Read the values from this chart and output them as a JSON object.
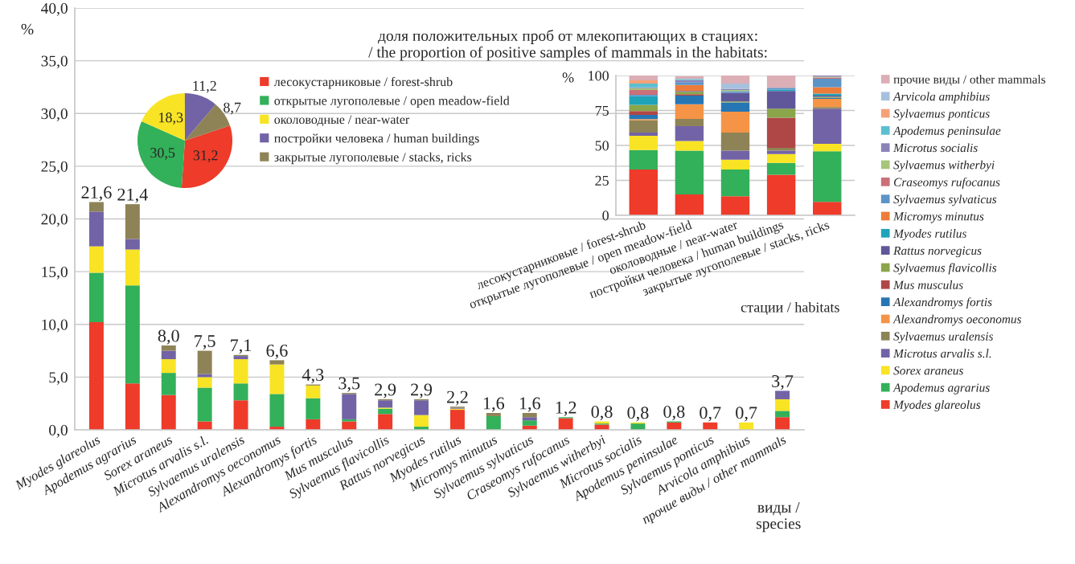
{
  "chart_data": [
    {
      "type": "bar",
      "stacked": true,
      "xlabel": "виды /\nspecies",
      "ylabel": "%",
      "grid": "y",
      "categories": [
        "Myodes glareolus",
        "Apodemus agrarius",
        "Sorex araneus",
        "Microtus arvalis s.l.",
        "Sylvaemus uralensis",
        "Alexandromys oeconomus",
        "Alexandromys fortis",
        "Mus musculus",
        "Sylvaemus flavicollis",
        "Rattus norvegicus",
        "Myodes rutilus",
        "Micromys minutus",
        "Sylvaemus sylvaticus",
        "Craseomys rufocanus",
        "Sylvaemus witherbyi",
        "Microtus socialis",
        "Apodemus peninsulae",
        "Sylvaemus ponticus",
        "Arvicola amphibius",
        "прочие виды / other mammals"
      ],
      "series": [
        {
          "color": "#ee3b2a",
          "values": [
            10.2,
            4.4,
            3.3,
            0.8,
            2.8,
            0.3,
            1.0,
            0.8,
            1.5,
            0,
            1.9,
            0,
            0.4,
            1.1,
            0.5,
            null,
            0.7,
            0.7,
            0,
            1.2
          ]
        },
        {
          "color": "#33b05a",
          "values": [
            4.7,
            9.3,
            2.1,
            3.2,
            1.6,
            3.1,
            2.0,
            0.2,
            0.5,
            0.3,
            0,
            1.3,
            0.5,
            0.1,
            0.1,
            0.6,
            0.1,
            0,
            0,
            0.6
          ]
        },
        {
          "color": "#f8e424",
          "values": [
            2.5,
            3.4,
            1.3,
            1.0,
            2.3,
            2.8,
            1.2,
            0,
            0.1,
            1.1,
            0.1,
            0,
            0,
            0,
            0.2,
            0.1,
            0,
            0,
            0.7,
            1.1
          ]
        },
        {
          "color": "#7263a6",
          "values": [
            3.3,
            1.0,
            0.8,
            0.3,
            0.3,
            0,
            0,
            2.4,
            0.7,
            1.4,
            0.1,
            0,
            0.3,
            0,
            0,
            0,
            0,
            0,
            0,
            0.8
          ]
        },
        {
          "color": "#8e8356",
          "values": [
            0.9,
            3.3,
            0.5,
            2.2,
            0.1,
            0.4,
            0.1,
            0.1,
            0.1,
            0.1,
            0.1,
            0.3,
            0.4,
            0,
            0,
            0,
            0,
            0,
            0,
            0
          ]
        }
      ],
      "ylim": [
        0,
        40
      ],
      "yticks": [
        {
          "value": 0,
          "label": "0,0"
        },
        {
          "value": 5,
          "label": "5,0"
        },
        {
          "value": 10,
          "label": "10,0"
        },
        {
          "value": 15,
          "label": "15,0"
        },
        {
          "value": 20,
          "label": "20,0"
        },
        {
          "value": 25,
          "label": "25,0"
        },
        {
          "value": 30,
          "label": "30,0"
        },
        {
          "value": 35,
          "label": "35,0"
        },
        {
          "value": 40,
          "label": "40,0"
        }
      ],
      "totals": [
        "21,6",
        "21,4",
        "8,0",
        "7,5",
        "7,1",
        "6,6",
        "4,3",
        "3,5",
        "2,9",
        "2,9",
        "2,2",
        "1,6",
        "1,6",
        "1,2",
        "0,8",
        "0,8",
        "0,8",
        "0,7",
        "0,7",
        "3,7"
      ]
    },
    {
      "type": "pie",
      "legend": "right",
      "categories": [
        "лесокустарниковые / forest-shrub",
        "открытые лугополевые / open meadow-field",
        "околоводные / near-water",
        "постройки человека / human buildings",
        "закрытые лугополевые / stacks, ricks"
      ],
      "values": [
        31.2,
        30.5,
        18.3,
        11.2,
        8.7
      ],
      "colors": [
        "#ee3b2a",
        "#33b05a",
        "#f8e424",
        "#7263a6",
        "#8e8356"
      ],
      "value_labels": [
        "31,2",
        "30,5",
        "18,3",
        "11,2",
        "8,7"
      ]
    },
    {
      "type": "bar",
      "stacked": true,
      "title": "доля положительных проб от млекопитающих в стациях:\n/ the proportion of positive samples of mammals in the habitats:",
      "xlabel": "стации / habitats",
      "ylabel": "%",
      "grid": "y",
      "legend": "right",
      "categories": [
        "лесокустарниковые / forest-shrub",
        "открытые лугополевые / open meadow-field",
        "околоводные / near-water",
        "постройки человека / human buildings",
        "закрытые лугополевые / stacks, ricks"
      ],
      "series": [
        {
          "name": "Myodes glareolus",
          "color": "#ee3b2a",
          "values": [
            32.7,
            15.0,
            13.7,
            29.0,
            9.6
          ]
        },
        {
          "name": "Apodemus agrarius",
          "color": "#33b05a",
          "values": [
            14.0,
            31.2,
            19.0,
            8.5,
            36.2
          ]
        },
        {
          "name": "Sorex araneus",
          "color": "#f8e424",
          "values": [
            10.2,
            6.9,
            7.1,
            6.3,
            5.4
          ]
        },
        {
          "name": "Microtus arvalis s.l.",
          "color": "#7263a6",
          "values": [
            2.3,
            10.7,
            6.4,
            2.4,
            25.1
          ]
        },
        {
          "name": "Sylvaemus uralensis",
          "color": "#8e8356",
          "values": [
            8.7,
            5.2,
            13.0,
            2.1,
            1.2
          ]
        },
        {
          "name": "Alexandromys oeconomus",
          "color": "#f59447",
          "values": [
            0.9,
            10.4,
            15.0,
            0,
            5.8
          ]
        },
        {
          "name": "Alexandromys fortis",
          "color": "#2676b4",
          "values": [
            3.1,
            6.2,
            6.6,
            0,
            0.8
          ]
        },
        {
          "name": "Mus musculus",
          "color": "#b04747",
          "values": [
            2.7,
            1.1,
            0,
            21.5,
            0
          ]
        },
        {
          "name": "Sylvaemus flavicollis",
          "color": "#8aa54a",
          "values": [
            4.4,
            1.6,
            0.7,
            6.5,
            0.6
          ]
        },
        {
          "name": "Rattus norvegicus",
          "color": "#5f5799",
          "values": [
            0,
            0.7,
            6.2,
            12.7,
            1.0
          ]
        },
        {
          "name": "Myodes rutilus",
          "color": "#1fa3b8",
          "values": [
            6.2,
            0,
            0,
            1.0,
            1.4
          ]
        },
        {
          "name": "Micromys minutus",
          "color": "#ec7c3a",
          "values": [
            0,
            4.3,
            0,
            0,
            4.6
          ]
        },
        {
          "name": "Sylvaemus sylvaticus",
          "color": "#5c94c8",
          "values": [
            1.0,
            1.9,
            1.1,
            1.3,
            6.0
          ]
        },
        {
          "name": "Craseomys rufocanus",
          "color": "#c97078",
          "values": [
            3.4,
            0,
            0,
            0,
            0.8
          ]
        },
        {
          "name": "Sylvaemus witherbyi",
          "color": "#a6c47a",
          "values": [
            1.4,
            0,
            0.8,
            0,
            0.6
          ]
        },
        {
          "name": "Microtus socialis",
          "color": "#8b83b8",
          "values": [
            0.5,
            1.5,
            0.8,
            0,
            0.9
          ]
        },
        {
          "name": "Apodemus peninsulae",
          "color": "#5bbfd0",
          "values": [
            2.8,
            0.8,
            0,
            0,
            0
          ]
        },
        {
          "name": "Sylvaemus ponticus",
          "color": "#f5a178",
          "values": [
            2.2,
            0,
            0,
            0,
            0
          ]
        },
        {
          "name": "Arvicola amphibius",
          "color": "#a7c0de",
          "values": [
            0,
            null,
            3.8,
            0,
            0
          ]
        },
        {
          "name": "прочие виды / other mammals",
          "color": "#dcaeb6",
          "values": [
            3.5,
            1.9,
            5.8,
            8.7,
            0
          ]
        }
      ],
      "ylim": [
        0,
        100
      ],
      "yticks": [
        0,
        25,
        50,
        75,
        100
      ]
    }
  ]
}
